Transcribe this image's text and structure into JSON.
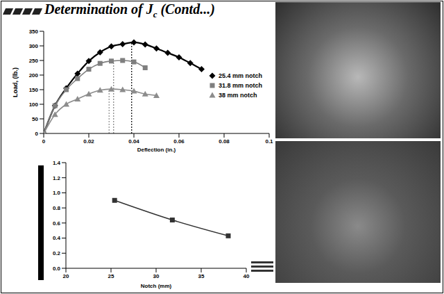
{
  "title": [
    "Determination of J",
    "c",
    " (Contd...)"
  ],
  "chart_data": [
    {
      "type": "line",
      "x_label": "Deflection (in.)",
      "y_label": "Load, (lb.)",
      "xlim": [
        0,
        0.1
      ],
      "xticks": [
        0,
        0.02,
        0.04,
        0.06,
        0.08,
        0.1
      ],
      "ylim": [
        0,
        350
      ],
      "yticks": [
        0,
        50,
        100,
        150,
        200,
        250,
        300,
        350
      ],
      "grid": false,
      "legend": "right",
      "series": [
        {
          "name": "25.4 mm notch",
          "color": "#000000",
          "marker": "diamond",
          "peak_x": 0.039,
          "x": [
            0,
            0.005,
            0.01,
            0.015,
            0.02,
            0.025,
            0.03,
            0.035,
            0.04,
            0.045,
            0.05,
            0.055,
            0.06,
            0.065,
            0.07
          ],
          "values": [
            0,
            95,
            155,
            205,
            248,
            278,
            298,
            306,
            312,
            305,
            291,
            276,
            261,
            241,
            220
          ]
        },
        {
          "name": "31.8 mm notch",
          "color": "#7f7f7f",
          "marker": "square",
          "peak_x": 0.031,
          "x": [
            0,
            0.005,
            0.01,
            0.015,
            0.02,
            0.025,
            0.03,
            0.035,
            0.04,
            0.045
          ],
          "values": [
            0,
            95,
            150,
            188,
            220,
            240,
            248,
            250,
            245,
            225
          ]
        },
        {
          "name": "38 mm notch",
          "color": "#8c8c8c",
          "marker": "triangle",
          "peak_x": 0.029,
          "x": [
            0,
            0.005,
            0.01,
            0.015,
            0.02,
            0.025,
            0.03,
            0.035,
            0.04,
            0.045,
            0.05
          ],
          "values": [
            0,
            65,
            100,
            118,
            135,
            148,
            152,
            150,
            145,
            135,
            130
          ]
        }
      ]
    },
    {
      "type": "line",
      "x_label": "Notch (mm)",
      "xlim": [
        20,
        40
      ],
      "xticks": [
        20,
        25,
        30,
        35,
        40
      ],
      "ylim": [
        0,
        1.4
      ],
      "yticks": [
        {
          "value": 0,
          "label": "0.0"
        },
        0.2,
        0.4,
        0.6,
        0.8,
        {
          "value": 1,
          "label": "1.0"
        },
        1.2,
        1.4
      ],
      "grid": false,
      "series": [
        {
          "color": "#333333",
          "marker": "square",
          "x": [
            25.4,
            31.8,
            38
          ],
          "values": [
            0.9,
            0.64,
            0.43
          ]
        }
      ]
    }
  ]
}
